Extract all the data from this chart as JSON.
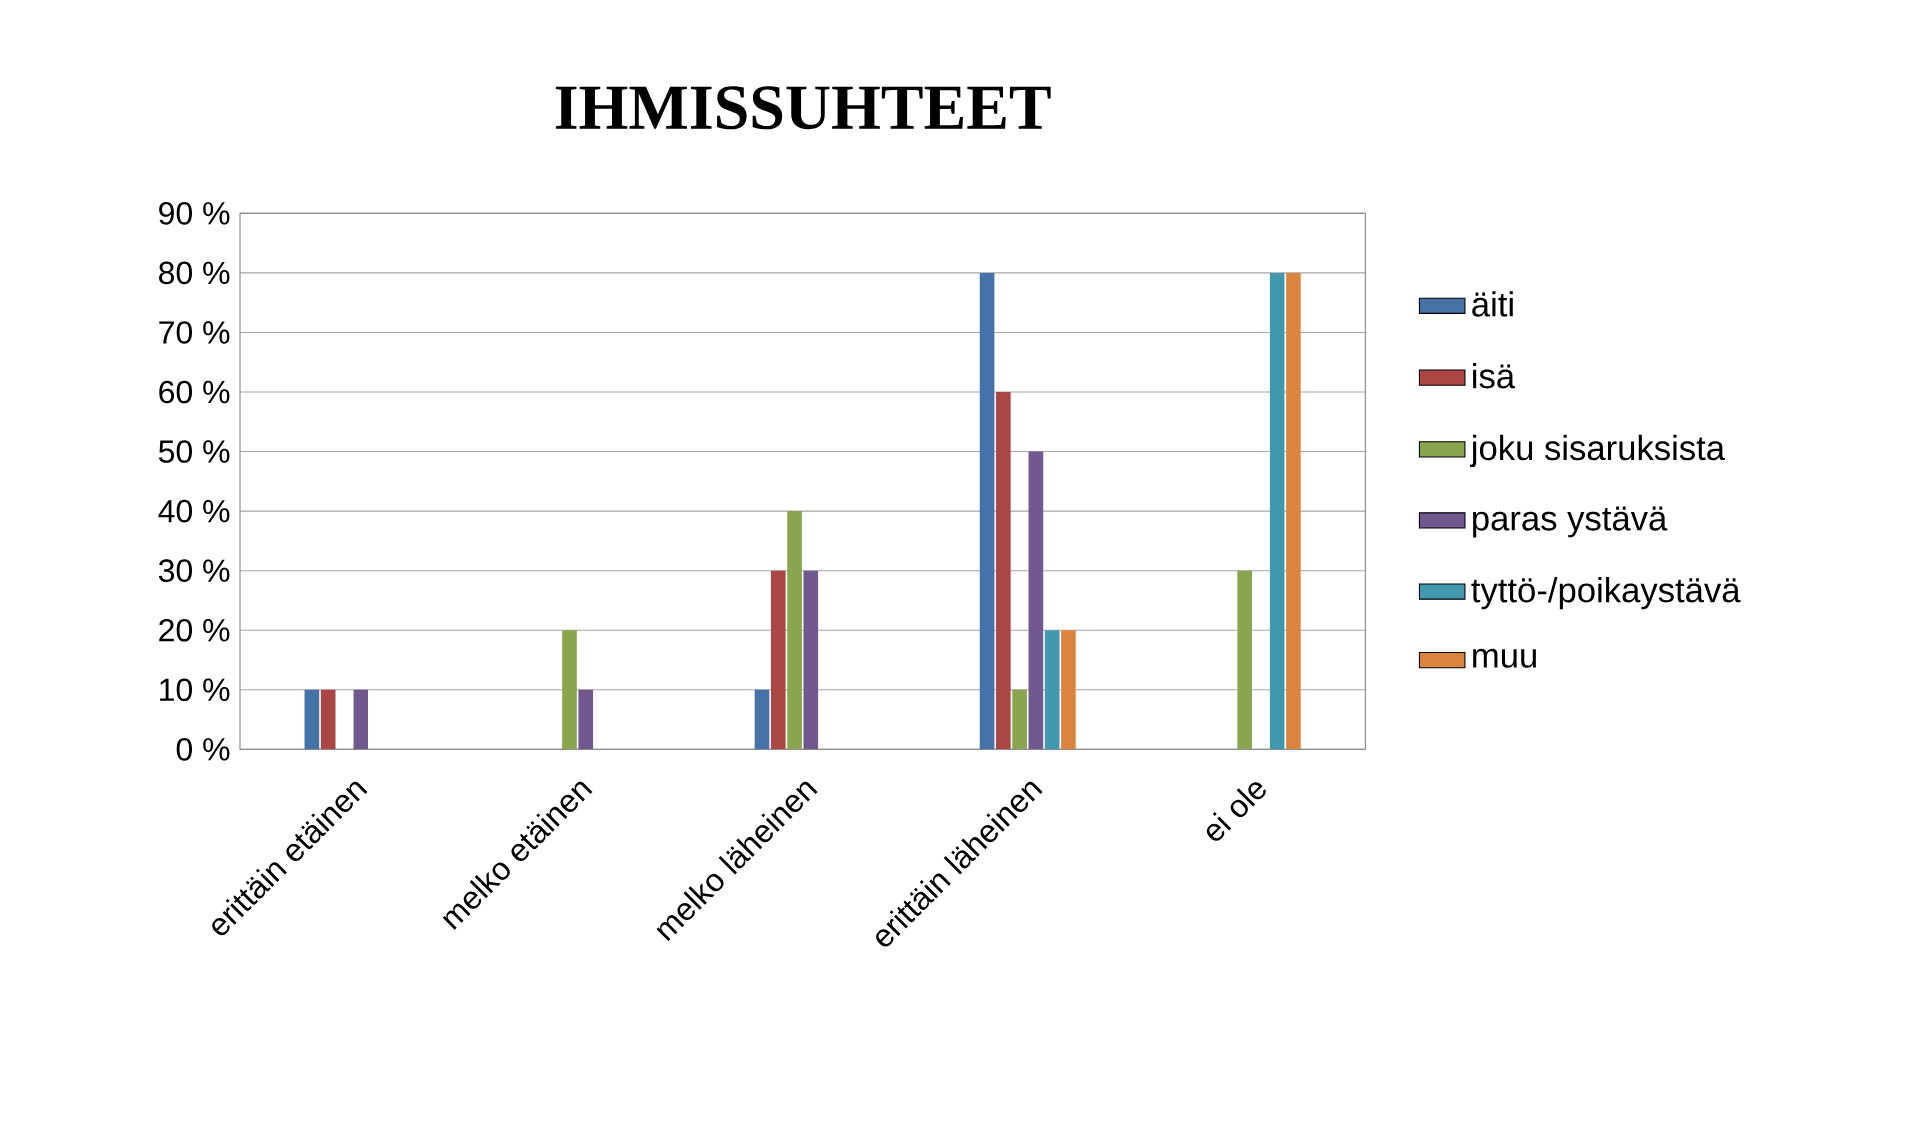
{
  "chart_data": {
    "type": "bar",
    "title": "IHMISSUHTEET",
    "categories": [
      "erittäin etäinen",
      "melko etäinen",
      "melko läheinen",
      "erittäin läheinen",
      "ei ole"
    ],
    "series": [
      {
        "name": "äiti",
        "color": "#4572a7",
        "values": [
          10,
          0,
          10,
          80,
          0
        ]
      },
      {
        "name": "isä",
        "color": "#aa4643",
        "values": [
          10,
          0,
          30,
          60,
          0
        ]
      },
      {
        "name": "joku sisaruksista",
        "color": "#89a54e",
        "values": [
          0,
          20,
          40,
          10,
          30
        ]
      },
      {
        "name": "paras ystävä",
        "color": "#71588f",
        "values": [
          10,
          10,
          30,
          50,
          0
        ]
      },
      {
        "name": "tyttö-/poikaystävä",
        "color": "#4198af",
        "values": [
          0,
          0,
          0,
          20,
          80
        ]
      },
      {
        "name": "muu",
        "color": "#db843d",
        "values": [
          0,
          0,
          0,
          20,
          80
        ]
      }
    ],
    "ylim": [
      0,
      90
    ],
    "yticks": [
      {
        "value": 0,
        "label": "0 %"
      },
      {
        "value": 10,
        "label": "10 %"
      },
      {
        "value": 20,
        "label": "20 %"
      },
      {
        "value": 30,
        "label": "30 %"
      },
      {
        "value": 40,
        "label": "40 %"
      },
      {
        "value": 50,
        "label": "50 %"
      },
      {
        "value": 60,
        "label": "60 %"
      },
      {
        "value": 70,
        "label": "70 %"
      },
      {
        "value": 80,
        "label": "80 %"
      },
      {
        "value": 90,
        "label": "90 %"
      }
    ],
    "grid": "y",
    "legend": "right"
  }
}
